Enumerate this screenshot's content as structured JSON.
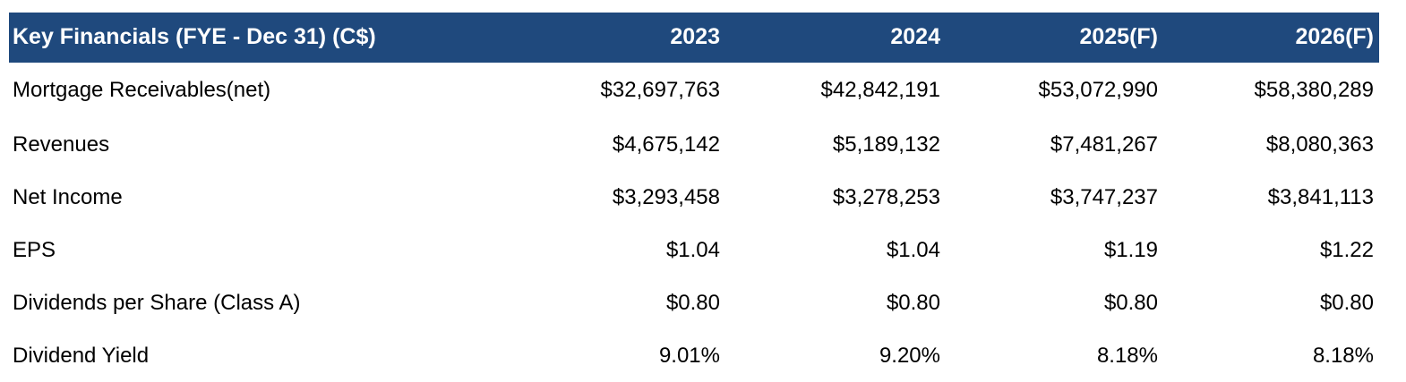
{
  "table": {
    "header": {
      "title": "Key Financials (FYE - Dec 31) (C$)",
      "years": [
        "2023",
        "2024",
        "2025(F)",
        "2026(F)"
      ]
    },
    "rows": [
      {
        "label": "Mortgage Receivables(net)",
        "values": [
          "$32,697,763",
          "$42,842,191",
          "$53,072,990",
          "$58,380,289"
        ]
      },
      {
        "label": "Revenues",
        "values": [
          "$4,675,142",
          "$5,189,132",
          "$7,481,267",
          "$8,080,363"
        ]
      },
      {
        "label": "Net Income",
        "values": [
          "$3,293,458",
          "$3,278,253",
          "$3,747,237",
          "$3,841,113"
        ]
      },
      {
        "label": "EPS",
        "values": [
          "$1.04",
          "$1.04",
          "$1.19",
          "$1.22"
        ]
      },
      {
        "label": "Dividends per Share (Class A)",
        "values": [
          "$0.80",
          "$0.80",
          "$0.80",
          "$0.80"
        ]
      },
      {
        "label": "Dividend Yield",
        "values": [
          "9.01%",
          "9.20%",
          "8.18%",
          "8.18%"
        ]
      }
    ]
  },
  "colors": {
    "header_background": "#1f497d",
    "header_text": "#ffffff",
    "body_text": "#000000"
  }
}
